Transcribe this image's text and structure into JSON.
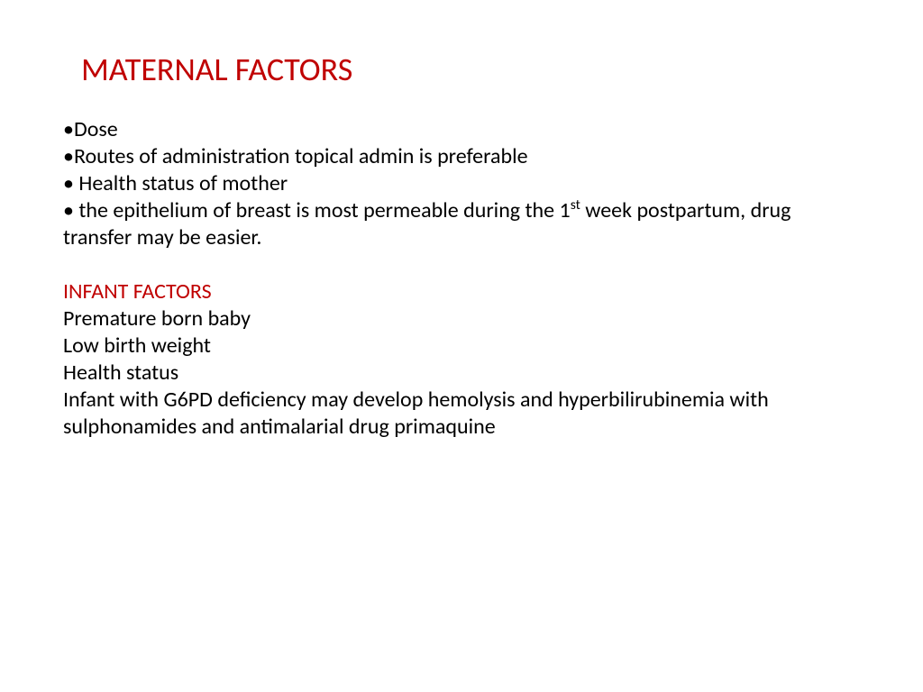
{
  "colors": {
    "heading": "#c00000",
    "body": "#000000",
    "background": "#ffffff"
  },
  "typography": {
    "title_fontsize": 36,
    "body_fontsize": 24,
    "font_family": "Calibri"
  },
  "title": "MATERNAL FACTORS",
  "maternal": {
    "bullets": [
      "Dose",
      "Routes of administration   topical admin is preferable",
      " Health status of mother"
    ],
    "last_bullet_prefix": " the epithelium of breast is most permeable during the 1",
    "last_bullet_super": "st",
    "last_bullet_suffix": " week postpartum, drug transfer may be easier."
  },
  "infant": {
    "heading": "INFANT FACTORS",
    "lines": [
      "Premature born baby",
      "Low birth weight",
      " Health status",
      "Infant with G6PD deficiency  may develop hemolysis and hyperbilirubinemia  with sulphonamides and antimalarial drug primaquine"
    ]
  }
}
